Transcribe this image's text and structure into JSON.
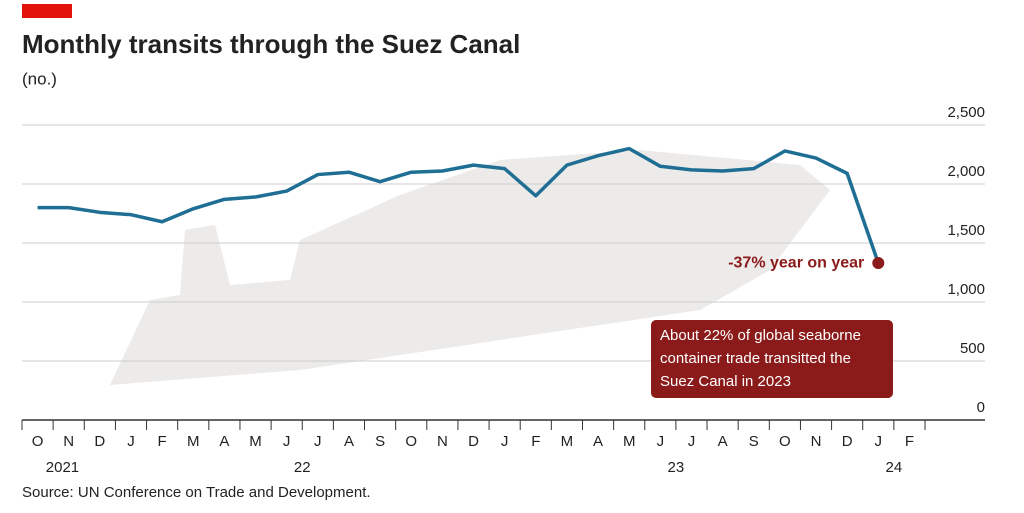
{
  "chart_data": {
    "type": "line",
    "title": "Monthly transits through the Suez Canal",
    "subtitle": "(no.)",
    "source": "Source: UN Conference on Trade and Development.",
    "categories": [
      "O",
      "N",
      "D",
      "J",
      "F",
      "M",
      "A",
      "M",
      "J",
      "J",
      "A",
      "S",
      "O",
      "N",
      "D",
      "J",
      "F",
      "M",
      "A",
      "M",
      "J",
      "J",
      "A",
      "S",
      "O",
      "N",
      "D",
      "J",
      "F"
    ],
    "year_labels": [
      "2021",
      "22",
      "23",
      "24"
    ],
    "series": [
      {
        "name": "Transits",
        "color": "#1f6e94",
        "values": [
          1800,
          1800,
          1760,
          1740,
          1680,
          1790,
          1870,
          1890,
          1940,
          2080,
          2100,
          2020,
          2100,
          2110,
          2160,
          2130,
          1900,
          2160,
          2240,
          2300,
          2150,
          2120,
          2110,
          2130,
          2280,
          2220,
          2090,
          1330,
          null
        ]
      }
    ],
    "ylim": [
      0,
      2500
    ],
    "yticks": [
      0,
      500,
      {
        "value": 1000,
        "label": "1,000"
      },
      {
        "value": 1500,
        "label": "1,500"
      },
      {
        "value": 2000,
        "label": "2,000"
      },
      {
        "value": 2500,
        "label": "2,500"
      }
    ],
    "grid": true,
    "annotation": "-37% year on year",
    "annotation_color": "#8b1a1a",
    "callout": [
      "About 22% of global seaborne",
      "container trade transitted the",
      "Suez Canal in 2023"
    ]
  }
}
